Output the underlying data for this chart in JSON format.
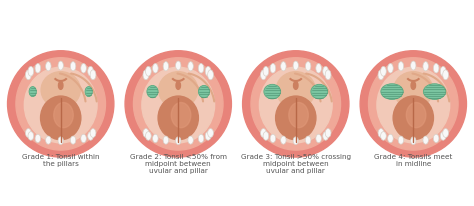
{
  "background_color": "#ffffff",
  "grades": [
    {
      "label": "Grade 1: Tonsil within\nthe pillars",
      "tonsil_scale": 0.1
    },
    {
      "label": "Grade 2: Tonsil <50% from\nmidpoint between\nuvular and pillar",
      "tonsil_scale": 0.18
    },
    {
      "label": "Grade 3: Tonsil >50% crossing\nmidpoint between\nuvular and pillar",
      "tonsil_scale": 0.27
    },
    {
      "label": "Grade 4: Tonsils meet\nin midline",
      "tonsil_scale": 0.36
    }
  ],
  "outer_lip_color": "#e8837a",
  "outer_lip_inner_color": "#f0a898",
  "mouth_bg_color": "#f2c9b8",
  "throat_color": "#e8b89a",
  "throat_dark_color": "#d09070",
  "tongue_body_color": "#cc8060",
  "tongue_tip_color": "#e09878",
  "tongue_center_color": "#b86848",
  "tooth_color": "#f8f8f8",
  "tooth_outline": "#d8d0c8",
  "pillar_color": "#d4a080",
  "tonsil_color": "#7ac4a0",
  "tonsil_outline": "#5aaa80",
  "tonsil_hatch_color": "#4a9070",
  "uvula_color": "#cc8060",
  "soft_palate_color": "#e0a888",
  "text_color": "#555555",
  "label_fontsize": 5.2
}
